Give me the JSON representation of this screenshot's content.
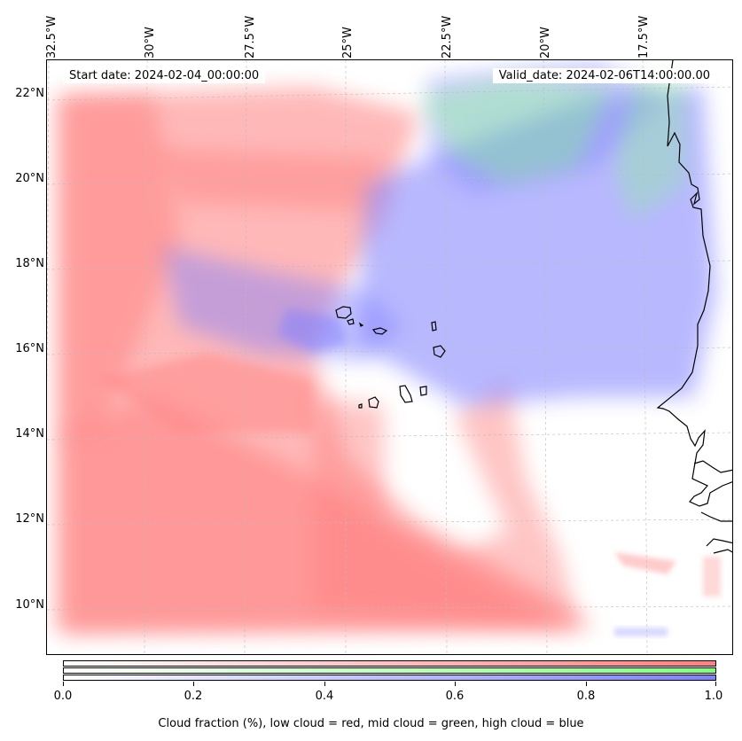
{
  "map": {
    "start_date": "Start date: 2024-02-04_00:00:00",
    "valid_date": "Valid_date: 2024-02-06T14:00:00.00",
    "lon_labels": [
      "32.5°W",
      "30°W",
      "27.5°W",
      "25°W",
      "22.5°W",
      "20°W",
      "17.5°W"
    ],
    "lat_labels": [
      "22°N",
      "20°N",
      "18°N",
      "16°N",
      "14°N",
      "12°N",
      "10°N"
    ],
    "colors": {
      "low_cloud": "#ff7f7f",
      "mid_cloud": "#7fff7f",
      "high_cloud": "#7f7fff",
      "coastline": "#000000",
      "gridline": "#bbbbbb"
    }
  },
  "colorbar": {
    "ticks": [
      "0.0",
      "0.2",
      "0.4",
      "0.6",
      "0.8",
      "1.0"
    ],
    "label": "Cloud fraction (%), low cloud = red, mid cloud = green, high cloud = blue"
  }
}
